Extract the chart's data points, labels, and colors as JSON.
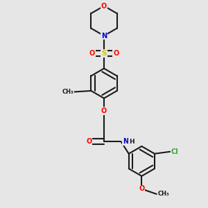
{
  "background_color": "#e6e6e6",
  "bond_color": "#1a1a1a",
  "bond_width": 1.5,
  "fig_width": 3.0,
  "fig_height": 3.0,
  "dpi": 100,
  "colors": {
    "O": "#ff0000",
    "N": "#0000cc",
    "S": "#cccc00",
    "Cl": "#33aa33",
    "C": "#1a1a1a",
    "H": "#1a1a1a"
  }
}
